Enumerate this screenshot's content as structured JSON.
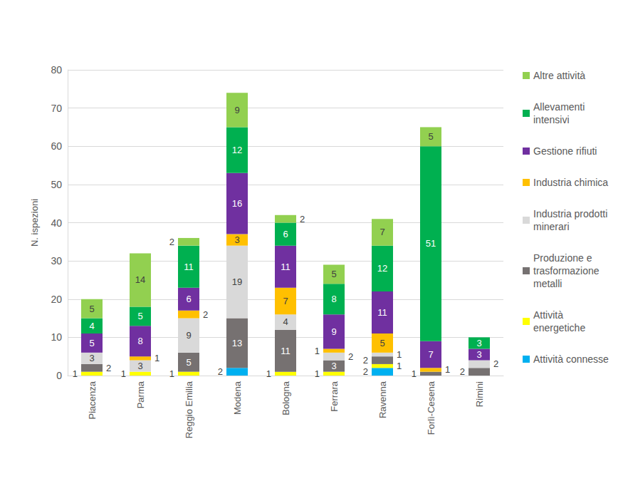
{
  "chart_data": {
    "type": "bar",
    "stacked": true,
    "data_labels": true,
    "grid": true,
    "legend": "right",
    "y_label": "N. ispezioni",
    "categories": [
      "Piacenza",
      "Parma",
      "Reggio Emilia",
      "Modena",
      "Bologna",
      "Ferrara",
      "Ravenna",
      "Forlì-Cesena",
      "Rimini"
    ],
    "ylim": [
      0,
      80
    ],
    "yticks": [
      0,
      10,
      20,
      30,
      40,
      50,
      60,
      70,
      80
    ],
    "series": [
      {
        "name": "Attività connesse",
        "color": "#00b0f0",
        "values": [
          null,
          null,
          null,
          2,
          null,
          null,
          2,
          null,
          null
        ]
      },
      {
        "name": "Attività energetiche",
        "color": "#ffff00",
        "values": [
          1,
          1,
          1,
          null,
          1,
          1,
          1,
          null,
          null
        ]
      },
      {
        "name": "Produzione e trasformazione metalli",
        "color": "#767171",
        "values": [
          2,
          null,
          5,
          13,
          11,
          3,
          2,
          1,
          2
        ]
      },
      {
        "name": "Industria prodotti minerari",
        "color": "#d9d9d9",
        "values": [
          3,
          3,
          9,
          19,
          4,
          2,
          1,
          null,
          2
        ]
      },
      {
        "name": "Industria chimica",
        "color": "#ffc000",
        "values": [
          null,
          1,
          2,
          3,
          7,
          1,
          5,
          1,
          null
        ]
      },
      {
        "name": "Gestione rifiuti",
        "color": "#7030a0",
        "values": [
          5,
          8,
          6,
          16,
          11,
          9,
          11,
          7,
          3
        ]
      },
      {
        "name": "Allevamenti intensivi",
        "color": "#00b050",
        "values": [
          4,
          5,
          11,
          12,
          6,
          8,
          12,
          51,
          3
        ]
      },
      {
        "name": "Altre attività",
        "color": "#92d050",
        "values": [
          5,
          14,
          2,
          9,
          2,
          5,
          7,
          5,
          null
        ]
      }
    ]
  }
}
